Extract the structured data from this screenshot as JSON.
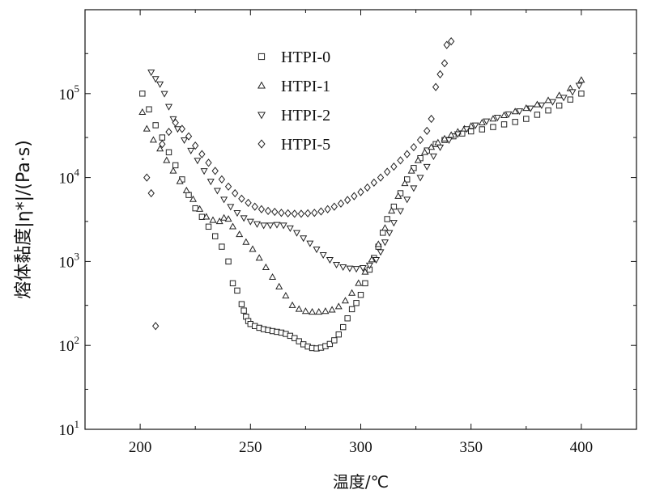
{
  "chart_data": {
    "type": "scatter",
    "xlabel": "温度/℃",
    "ylabel": "熔体黏度|η*|/(Pa·s)",
    "xlim": [
      175,
      425
    ],
    "ylim": [
      10,
      1000000
    ],
    "y_scale": "log",
    "x_ticks": [
      200,
      250,
      300,
      350,
      400
    ],
    "x_tick_labels": [
      "200",
      "250",
      "300",
      "350",
      "400"
    ],
    "y_ticks": [
      10,
      100,
      1000,
      10000,
      100000
    ],
    "y_tick_labels": [
      {
        "base": "10",
        "exp": "1"
      },
      {
        "base": "10",
        "exp": "2"
      },
      {
        "base": "10",
        "exp": "3"
      },
      {
        "base": "10",
        "exp": "4"
      },
      {
        "base": "10",
        "exp": "5"
      }
    ],
    "legend_position": "top-center",
    "series": [
      {
        "name": "HTPI-0",
        "marker": "square",
        "color": "#222222",
        "points": [
          [
            201,
            100000
          ],
          [
            204,
            65000
          ],
          [
            207,
            42000
          ],
          [
            210,
            30000
          ],
          [
            213,
            20000
          ],
          [
            216,
            14000
          ],
          [
            219,
            9500
          ],
          [
            222,
            6200
          ],
          [
            225,
            4300
          ],
          [
            228,
            3400
          ],
          [
            231,
            2600
          ],
          [
            234,
            2000
          ],
          [
            237,
            1500
          ],
          [
            240,
            1000
          ],
          [
            242,
            550
          ],
          [
            244,
            450
          ],
          [
            246,
            310
          ],
          [
            247,
            260
          ],
          [
            248,
            220
          ],
          [
            249,
            195
          ],
          [
            250,
            180
          ],
          [
            252,
            170
          ],
          [
            254,
            162
          ],
          [
            256,
            156
          ],
          [
            258,
            152
          ],
          [
            260,
            148
          ],
          [
            262,
            145
          ],
          [
            264,
            142
          ],
          [
            266,
            137
          ],
          [
            268,
            130
          ],
          [
            270,
            122
          ],
          [
            272,
            112
          ],
          [
            274,
            103
          ],
          [
            276,
            97
          ],
          [
            278,
            93
          ],
          [
            280,
            92
          ],
          [
            282,
            94
          ],
          [
            284,
            98
          ],
          [
            286,
            104
          ],
          [
            288,
            115
          ],
          [
            290,
            135
          ],
          [
            292,
            165
          ],
          [
            294,
            210
          ],
          [
            296,
            270
          ],
          [
            298,
            320
          ],
          [
            300,
            400
          ],
          [
            302,
            550
          ],
          [
            304,
            800
          ],
          [
            306,
            1100
          ],
          [
            308,
            1500
          ],
          [
            310,
            2200
          ],
          [
            312,
            3200
          ],
          [
            315,
            4500
          ],
          [
            318,
            6500
          ],
          [
            321,
            9500
          ],
          [
            324,
            13000
          ],
          [
            327,
            17000
          ],
          [
            330,
            21000
          ],
          [
            334,
            25000
          ],
          [
            338,
            28000
          ],
          [
            342,
            31000
          ],
          [
            346,
            33500
          ],
          [
            350,
            35500
          ],
          [
            355,
            37500
          ],
          [
            360,
            40000
          ],
          [
            365,
            43000
          ],
          [
            370,
            46000
          ],
          [
            375,
            50000
          ],
          [
            380,
            56000
          ],
          [
            385,
            63000
          ],
          [
            390,
            72000
          ],
          [
            395,
            85000
          ],
          [
            400,
            100000
          ]
        ]
      },
      {
        "name": "HTPI-1",
        "marker": "triangle-up",
        "color": "#222222",
        "points": [
          [
            201,
            60000
          ],
          [
            203,
            38000
          ],
          [
            206,
            28000
          ],
          [
            209,
            22000
          ],
          [
            212,
            16000
          ],
          [
            215,
            12000
          ],
          [
            218,
            9000
          ],
          [
            221,
            7000
          ],
          [
            224,
            5500
          ],
          [
            227,
            4200
          ],
          [
            230,
            3400
          ],
          [
            233,
            3100
          ],
          [
            236,
            3000
          ],
          [
            238,
            3300
          ],
          [
            240,
            3200
          ],
          [
            242,
            2600
          ],
          [
            245,
            2100
          ],
          [
            248,
            1700
          ],
          [
            251,
            1400
          ],
          [
            254,
            1100
          ],
          [
            257,
            850
          ],
          [
            260,
            650
          ],
          [
            263,
            500
          ],
          [
            266,
            390
          ],
          [
            269,
            300
          ],
          [
            272,
            270
          ],
          [
            275,
            255
          ],
          [
            278,
            250
          ],
          [
            281,
            250
          ],
          [
            284,
            255
          ],
          [
            287,
            265
          ],
          [
            290,
            290
          ],
          [
            293,
            340
          ],
          [
            296,
            420
          ],
          [
            299,
            550
          ],
          [
            302,
            750
          ],
          [
            305,
            1050
          ],
          [
            308,
            1600
          ],
          [
            311,
            2500
          ],
          [
            314,
            4000
          ],
          [
            317,
            6000
          ],
          [
            320,
            8500
          ],
          [
            323,
            12000
          ],
          [
            326,
            16000
          ],
          [
            329,
            20000
          ],
          [
            332,
            23000
          ],
          [
            335,
            26000
          ],
          [
            338,
            29000
          ],
          [
            341,
            32000
          ],
          [
            344,
            35000
          ],
          [
            347,
            38000
          ],
          [
            350,
            41000
          ],
          [
            355,
            45000
          ],
          [
            360,
            50000
          ],
          [
            365,
            55000
          ],
          [
            370,
            61000
          ],
          [
            375,
            67000
          ],
          [
            380,
            74000
          ],
          [
            385,
            83000
          ],
          [
            390,
            95000
          ],
          [
            395,
            115000
          ],
          [
            400,
            145000
          ]
        ]
      },
      {
        "name": "HTPI-2",
        "marker": "triangle-down",
        "color": "#222222",
        "points": [
          [
            205,
            180000
          ],
          [
            207,
            150000
          ],
          [
            209,
            130000
          ],
          [
            211,
            100000
          ],
          [
            213,
            70000
          ],
          [
            215,
            50000
          ],
          [
            217,
            38000
          ],
          [
            220,
            28000
          ],
          [
            223,
            21000
          ],
          [
            226,
            16000
          ],
          [
            229,
            12000
          ],
          [
            232,
            9000
          ],
          [
            235,
            7000
          ],
          [
            238,
            5500
          ],
          [
            241,
            4500
          ],
          [
            244,
            3800
          ],
          [
            247,
            3300
          ],
          [
            250,
            3000
          ],
          [
            253,
            2800
          ],
          [
            256,
            2700
          ],
          [
            259,
            2700
          ],
          [
            262,
            2750
          ],
          [
            265,
            2700
          ],
          [
            268,
            2500
          ],
          [
            271,
            2200
          ],
          [
            274,
            1900
          ],
          [
            277,
            1650
          ],
          [
            280,
            1400
          ],
          [
            283,
            1200
          ],
          [
            286,
            1050
          ],
          [
            289,
            920
          ],
          [
            292,
            860
          ],
          [
            295,
            830
          ],
          [
            298,
            820
          ],
          [
            301,
            840
          ],
          [
            304,
            900
          ],
          [
            307,
            1050
          ],
          [
            309,
            1300
          ],
          [
            311,
            1700
          ],
          [
            313,
            2200
          ],
          [
            315,
            2900
          ],
          [
            318,
            4000
          ],
          [
            321,
            5500
          ],
          [
            324,
            7500
          ],
          [
            327,
            10000
          ],
          [
            330,
            13500
          ],
          [
            333,
            18000
          ],
          [
            336,
            23000
          ],
          [
            340,
            28000
          ],
          [
            344,
            33000
          ],
          [
            348,
            38000
          ],
          [
            352,
            42000
          ],
          [
            357,
            47000
          ],
          [
            362,
            52000
          ],
          [
            367,
            57000
          ],
          [
            372,
            62000
          ],
          [
            377,
            67000
          ],
          [
            382,
            73000
          ],
          [
            387,
            80000
          ],
          [
            392,
            90000
          ],
          [
            396,
            105000
          ],
          [
            399,
            125000
          ]
        ]
      },
      {
        "name": "HTPI-5",
        "marker": "diamond",
        "color": "#222222",
        "points": [
          [
            203,
            10000
          ],
          [
            205,
            6500
          ],
          [
            207,
            170
          ],
          [
            210,
            25000
          ],
          [
            213,
            35000
          ],
          [
            216,
            45000
          ],
          [
            219,
            38000
          ],
          [
            222,
            31000
          ],
          [
            225,
            24000
          ],
          [
            228,
            19000
          ],
          [
            231,
            15000
          ],
          [
            234,
            12000
          ],
          [
            237,
            9500
          ],
          [
            240,
            7800
          ],
          [
            243,
            6500
          ],
          [
            246,
            5600
          ],
          [
            249,
            5000
          ],
          [
            252,
            4500
          ],
          [
            255,
            4200
          ],
          [
            258,
            4000
          ],
          [
            261,
            3900
          ],
          [
            264,
            3800
          ],
          [
            267,
            3750
          ],
          [
            270,
            3700
          ],
          [
            273,
            3700
          ],
          [
            276,
            3750
          ],
          [
            279,
            3800
          ],
          [
            282,
            3950
          ],
          [
            285,
            4200
          ],
          [
            288,
            4500
          ],
          [
            291,
            4900
          ],
          [
            294,
            5400
          ],
          [
            297,
            6000
          ],
          [
            300,
            6700
          ],
          [
            303,
            7600
          ],
          [
            306,
            8700
          ],
          [
            309,
            10000
          ],
          [
            312,
            11700
          ],
          [
            315,
            13500
          ],
          [
            318,
            16000
          ],
          [
            321,
            19000
          ],
          [
            324,
            23000
          ],
          [
            327,
            28000
          ],
          [
            330,
            36000
          ],
          [
            332,
            50000
          ],
          [
            334,
            120000
          ],
          [
            336,
            170000
          ],
          [
            338,
            230000
          ],
          [
            339,
            380000
          ],
          [
            341,
            420000
          ]
        ]
      }
    ]
  }
}
